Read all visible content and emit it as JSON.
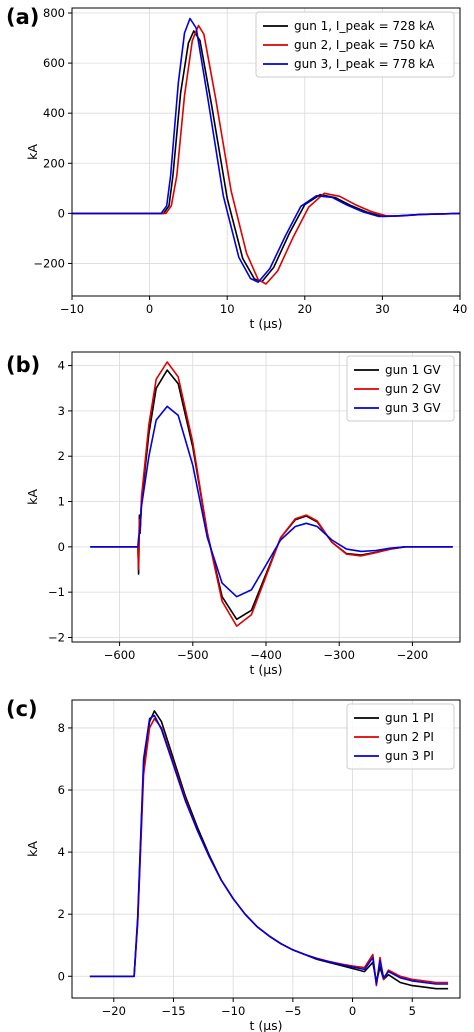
{
  "chart_data": [
    {
      "type": "line",
      "panel_label": "(a)",
      "xlabel": "t (μs)",
      "ylabel": "kA",
      "xlim": [
        -10,
        40
      ],
      "ylim": [
        -330,
        820
      ],
      "xticks": [
        -10,
        0,
        10,
        20,
        30,
        40
      ],
      "xtick_labels": [
        "−10",
        "0",
        "10",
        "20",
        "30",
        "40"
      ],
      "yticks": [
        -200,
        0,
        200,
        400,
        600,
        800
      ],
      "ytick_labels": [
        "−200",
        "0",
        "200",
        "400",
        "600",
        "800"
      ],
      "grid": true,
      "legend_position": "top-right",
      "series": [
        {
          "name": "gun 1, I_peak = 728 kA",
          "color": "#000000",
          "x": [
            -10,
            1.8,
            2.5,
            3,
            4,
            5,
            5.7,
            6.5,
            8,
            10,
            12,
            13.5,
            14.5,
            16,
            18,
            20,
            22,
            24,
            26,
            28,
            30,
            32,
            35,
            40
          ],
          "y": [
            0,
            0,
            30,
            150,
            480,
            680,
            728,
            690,
            430,
            60,
            -180,
            -262,
            -272,
            -215,
            -80,
            35,
            75,
            62,
            30,
            5,
            -12,
            -10,
            -4,
            0
          ]
        },
        {
          "name": "gun 2, I_peak = 750 kA",
          "color": "#e00000",
          "x": [
            -10,
            2.1,
            2.8,
            3.5,
            4.5,
            5.5,
            6.3,
            7,
            8.5,
            10.5,
            12.5,
            14,
            15,
            16.5,
            18.5,
            20.5,
            22.5,
            24.5,
            26.5,
            28.5,
            30.5,
            32.5,
            35,
            40
          ],
          "y": [
            0,
            0,
            30,
            150,
            470,
            690,
            750,
            715,
            460,
            90,
            -160,
            -265,
            -282,
            -230,
            -95,
            25,
            80,
            68,
            35,
            8,
            -10,
            -10,
            -4,
            0
          ]
        },
        {
          "name": "gun 3, I_peak = 778 kA",
          "color": "#0000e0",
          "x": [
            -10,
            1.5,
            2.2,
            2.7,
            3.7,
            4.5,
            5.2,
            6,
            7.5,
            9.5,
            11.5,
            13,
            14,
            15.5,
            17.5,
            19.5,
            21.5,
            23.5,
            25.5,
            27.5,
            29.5,
            31.5,
            35,
            40
          ],
          "y": [
            0,
            0,
            30,
            150,
            520,
            720,
            778,
            740,
            460,
            70,
            -175,
            -260,
            -275,
            -220,
            -90,
            28,
            70,
            64,
            32,
            6,
            -12,
            -11,
            -4,
            0
          ]
        }
      ]
    },
    {
      "type": "line",
      "panel_label": "(b)",
      "xlabel": "t (μs)",
      "ylabel": "kA",
      "xlim": [
        -665,
        -135
      ],
      "ylim": [
        -2.1,
        4.3
      ],
      "xticks": [
        -600,
        -500,
        -400,
        -300,
        -200
      ],
      "xtick_labels": [
        "−600",
        "−500",
        "−400",
        "−300",
        "−200"
      ],
      "yticks": [
        -2,
        -1,
        0,
        1,
        2,
        3,
        4
      ],
      "ytick_labels": [
        "−2",
        "−1",
        "0",
        "1",
        "2",
        "3",
        "4"
      ],
      "grid": true,
      "legend_position": "top-right",
      "series": [
        {
          "name": "gun 1 GV",
          "color": "#000000",
          "x": [
            -640,
            -575,
            -574,
            -573,
            -572,
            -570,
            -560,
            -550,
            -535,
            -520,
            -500,
            -480,
            -460,
            -440,
            -420,
            -400,
            -380,
            -360,
            -345,
            -330,
            -310,
            -290,
            -270,
            -250,
            -230,
            -210,
            -190,
            -145
          ],
          "y": [
            0,
            0,
            -0.6,
            0.7,
            0.3,
            1.0,
            2.5,
            3.5,
            3.9,
            3.6,
            2.2,
            0.3,
            -1.1,
            -1.6,
            -1.4,
            -0.6,
            0.2,
            0.6,
            0.68,
            0.55,
            0.1,
            -0.15,
            -0.18,
            -0.12,
            -0.05,
            0,
            0,
            0
          ]
        },
        {
          "name": "gun 2 GV",
          "color": "#e00000",
          "x": [
            -640,
            -575,
            -574,
            -573,
            -572,
            -570,
            -560,
            -550,
            -535,
            -520,
            -500,
            -480,
            -460,
            -440,
            -420,
            -400,
            -380,
            -360,
            -345,
            -330,
            -310,
            -290,
            -270,
            -250,
            -230,
            -210,
            -190,
            -145
          ],
          "y": [
            0,
            0,
            -0.5,
            0.6,
            0.35,
            1.1,
            2.7,
            3.7,
            4.08,
            3.75,
            2.3,
            0.3,
            -1.2,
            -1.75,
            -1.5,
            -0.65,
            0.2,
            0.62,
            0.7,
            0.57,
            0.1,
            -0.16,
            -0.2,
            -0.13,
            -0.05,
            0,
            0,
            0
          ]
        },
        {
          "name": "gun 3 GV",
          "color": "#0000e0",
          "x": [
            -640,
            -575,
            -574,
            -572,
            -570,
            -560,
            -550,
            -535,
            -520,
            -500,
            -480,
            -460,
            -440,
            -420,
            -400,
            -380,
            -360,
            -345,
            -330,
            -310,
            -290,
            -270,
            -250,
            -230,
            -210,
            -190,
            -145
          ],
          "y": [
            0,
            0,
            0.2,
            0.4,
            0.9,
            2.0,
            2.8,
            3.1,
            2.9,
            1.8,
            0.2,
            -0.8,
            -1.1,
            -0.95,
            -0.4,
            0.15,
            0.45,
            0.52,
            0.45,
            0.15,
            -0.05,
            -0.1,
            -0.08,
            -0.03,
            0,
            0,
            0
          ]
        }
      ]
    },
    {
      "type": "line",
      "panel_label": "(c)",
      "xlabel": "t (μs)",
      "ylabel": "kA",
      "xlim": [
        -23.5,
        9
      ],
      "ylim": [
        -0.7,
        8.9
      ],
      "xticks": [
        -20,
        -15,
        -10,
        -5,
        0,
        5
      ],
      "xtick_labels": [
        "−20",
        "−15",
        "−10",
        "−5",
        "0",
        "5"
      ],
      "yticks": [
        0,
        2,
        4,
        6,
        8
      ],
      "ytick_labels": [
        "0",
        "2",
        "4",
        "6",
        "8"
      ],
      "grid": true,
      "legend_position": "top-right",
      "series": [
        {
          "name": "gun 1 PI",
          "color": "#000000",
          "x": [
            -22,
            -18.3,
            -18,
            -17.5,
            -17,
            -16.6,
            -16,
            -15,
            -14,
            -13,
            -12,
            -11,
            -10,
            -9,
            -8,
            -7,
            -6,
            -5,
            -4,
            -3,
            -2,
            -1,
            0,
            1,
            1.7,
            2,
            2.3,
            2.6,
            3,
            4,
            5,
            6,
            7,
            8
          ],
          "y": [
            0,
            0,
            1.8,
            6.8,
            8.2,
            8.55,
            8.2,
            7.0,
            5.8,
            4.8,
            3.9,
            3.1,
            2.5,
            2.0,
            1.6,
            1.3,
            1.05,
            0.85,
            0.7,
            0.55,
            0.45,
            0.35,
            0.25,
            0.15,
            0.45,
            -0.2,
            0.3,
            -0.1,
            0.05,
            -0.2,
            -0.3,
            -0.35,
            -0.4,
            -0.4
          ]
        },
        {
          "name": "gun 2 PI",
          "color": "#e00000",
          "x": [
            -22,
            -18.3,
            -18,
            -17.5,
            -17,
            -16.6,
            -16,
            -15,
            -14,
            -13,
            -12,
            -11,
            -10,
            -9,
            -8,
            -7,
            -6,
            -5,
            -4,
            -3,
            -2,
            -1,
            0,
            1,
            1.7,
            2,
            2.3,
            2.6,
            3,
            4,
            5,
            6,
            7,
            8
          ],
          "y": [
            0,
            0,
            1.7,
            6.5,
            8.0,
            8.3,
            8.0,
            6.85,
            5.7,
            4.7,
            3.85,
            3.1,
            2.5,
            2.0,
            1.6,
            1.3,
            1.05,
            0.85,
            0.7,
            0.58,
            0.48,
            0.4,
            0.33,
            0.28,
            0.7,
            -0.3,
            0.6,
            -0.1,
            0.2,
            0.0,
            -0.1,
            -0.15,
            -0.2,
            -0.2
          ]
        },
        {
          "name": "gun 3 PI",
          "color": "#0000e0",
          "x": [
            -22,
            -18.3,
            -18,
            -17.5,
            -17,
            -16.6,
            -16,
            -15,
            -14,
            -13,
            -12,
            -11,
            -10,
            -9,
            -8,
            -7,
            -6,
            -5,
            -4,
            -3,
            -2,
            -1,
            0,
            1,
            1.7,
            2,
            2.3,
            2.6,
            3,
            4,
            5,
            6,
            7,
            8
          ],
          "y": [
            0,
            0,
            1.9,
            7.0,
            8.3,
            8.4,
            7.95,
            6.8,
            5.65,
            4.7,
            3.85,
            3.1,
            2.5,
            2.0,
            1.6,
            1.3,
            1.05,
            0.85,
            0.7,
            0.57,
            0.47,
            0.38,
            0.3,
            0.22,
            0.6,
            -0.25,
            0.5,
            -0.05,
            0.15,
            -0.05,
            -0.15,
            -0.2,
            -0.25,
            -0.25
          ]
        }
      ]
    }
  ]
}
